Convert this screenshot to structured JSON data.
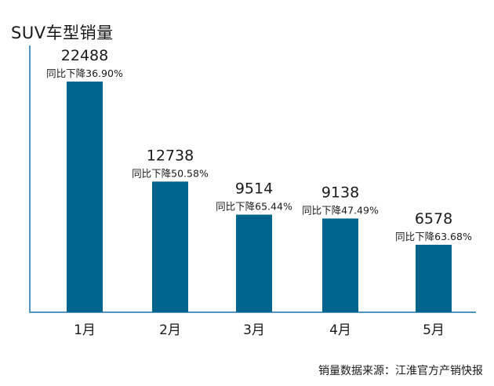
{
  "title": "SUV车型销量",
  "source": "销量数据来源：江淮官方产销快报",
  "colors": {
    "bar": "#00648c",
    "axis": "#4f97c2",
    "text": "#1a1a1a"
  },
  "chart_data": {
    "type": "bar",
    "title": "SUV车型销量",
    "categories": [
      "1月",
      "2月",
      "3月",
      "4月",
      "5月"
    ],
    "values": [
      22488,
      12738,
      9514,
      9138,
      6578
    ],
    "value_labels": [
      "22488",
      "12738",
      "9514",
      "9138",
      "6578"
    ],
    "annotations": [
      "同比下降36.90%",
      "同比下降50.58%",
      "同比下降65.44%",
      "同比下降47.49%",
      "同比下降63.68%"
    ],
    "xlabel": "",
    "ylabel": "",
    "ylim": [
      0,
      26000
    ],
    "grid": false,
    "legend": "none"
  }
}
